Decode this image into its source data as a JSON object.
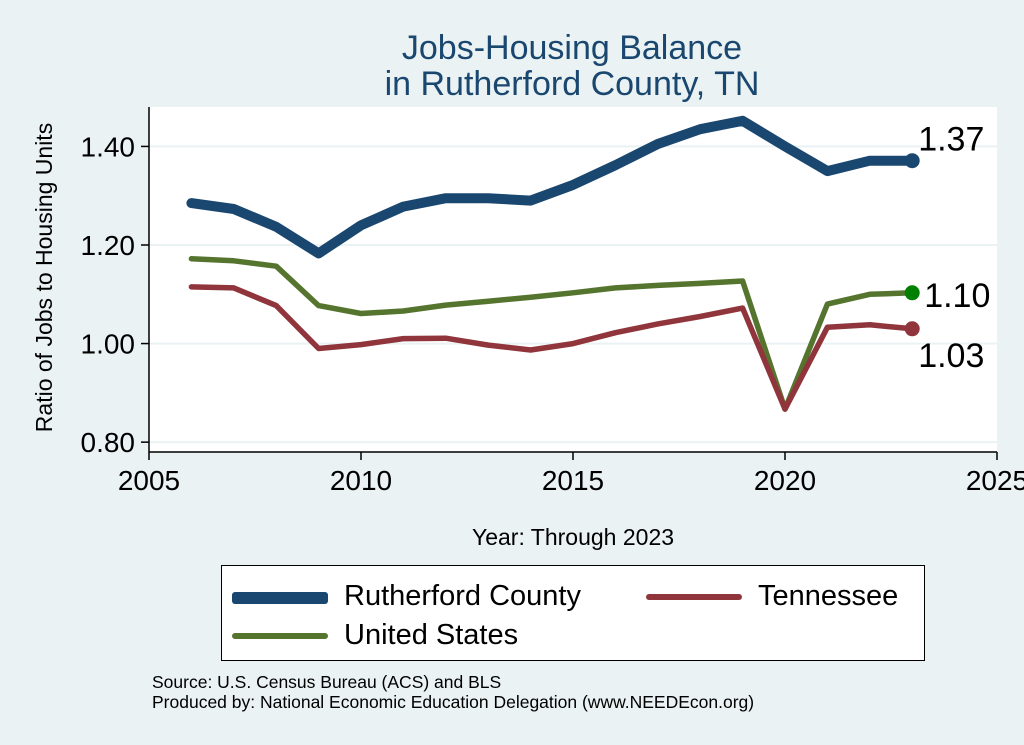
{
  "title_line1": "Jobs-Housing Balance",
  "title_line2": "in Rutherford County, TN",
  "chart_data": {
    "type": "line",
    "title": "Jobs-Housing Balance in Rutherford County, TN",
    "xlabel": "Year: Through 2023",
    "ylabel": "Ratio of Jobs to Housing Units",
    "xlim": [
      2005,
      2025
    ],
    "ylim": [
      0.78,
      1.48
    ],
    "xticks": [
      2005,
      2010,
      2015,
      2020,
      2025
    ],
    "yticks": [
      0.8,
      1.0,
      1.2,
      1.4
    ],
    "ytick_labels": [
      "0.80",
      "1.00",
      "1.20",
      "1.40"
    ],
    "x": [
      2006,
      2007,
      2008,
      2009,
      2010,
      2011,
      2012,
      2013,
      2014,
      2015,
      2016,
      2017,
      2018,
      2019,
      2020,
      2021,
      2022,
      2023
    ],
    "series": [
      {
        "name": "Rutherford County",
        "color": "#1a476f",
        "end_marker_color": "#1a476f",
        "end_label": "1.37",
        "values": [
          1.285,
          1.273,
          1.237,
          1.183,
          1.24,
          1.278,
          1.295,
          1.295,
          1.29,
          1.322,
          1.362,
          1.405,
          1.435,
          1.452,
          1.4,
          1.35,
          1.371,
          1.371
        ]
      },
      {
        "name": "Tennessee",
        "color": "#90353b",
        "end_marker_color": "#90353b",
        "end_label": "1.03",
        "values": [
          1.115,
          1.113,
          1.077,
          0.99,
          0.998,
          1.01,
          1.011,
          0.997,
          0.987,
          1.0,
          1.022,
          1.04,
          1.055,
          1.072,
          0.867,
          1.033,
          1.038,
          1.03
        ]
      },
      {
        "name": "United States",
        "color": "#55752f",
        "end_marker_color": "#008000",
        "end_label": "1.10",
        "values": [
          1.172,
          1.168,
          1.157,
          1.077,
          1.061,
          1.066,
          1.078,
          1.086,
          1.094,
          1.103,
          1.113,
          1.118,
          1.122,
          1.127,
          0.867,
          1.08,
          1.1,
          1.103
        ]
      }
    ],
    "legend": [
      "Rutherford County",
      "Tennessee",
      "United States"
    ],
    "grid": true
  },
  "source_line": "Source: U.S. Census Bureau (ACS) and BLS",
  "produced_line": "Produced by: National Economic Education Delegation (www.NEEDEcon.org)"
}
